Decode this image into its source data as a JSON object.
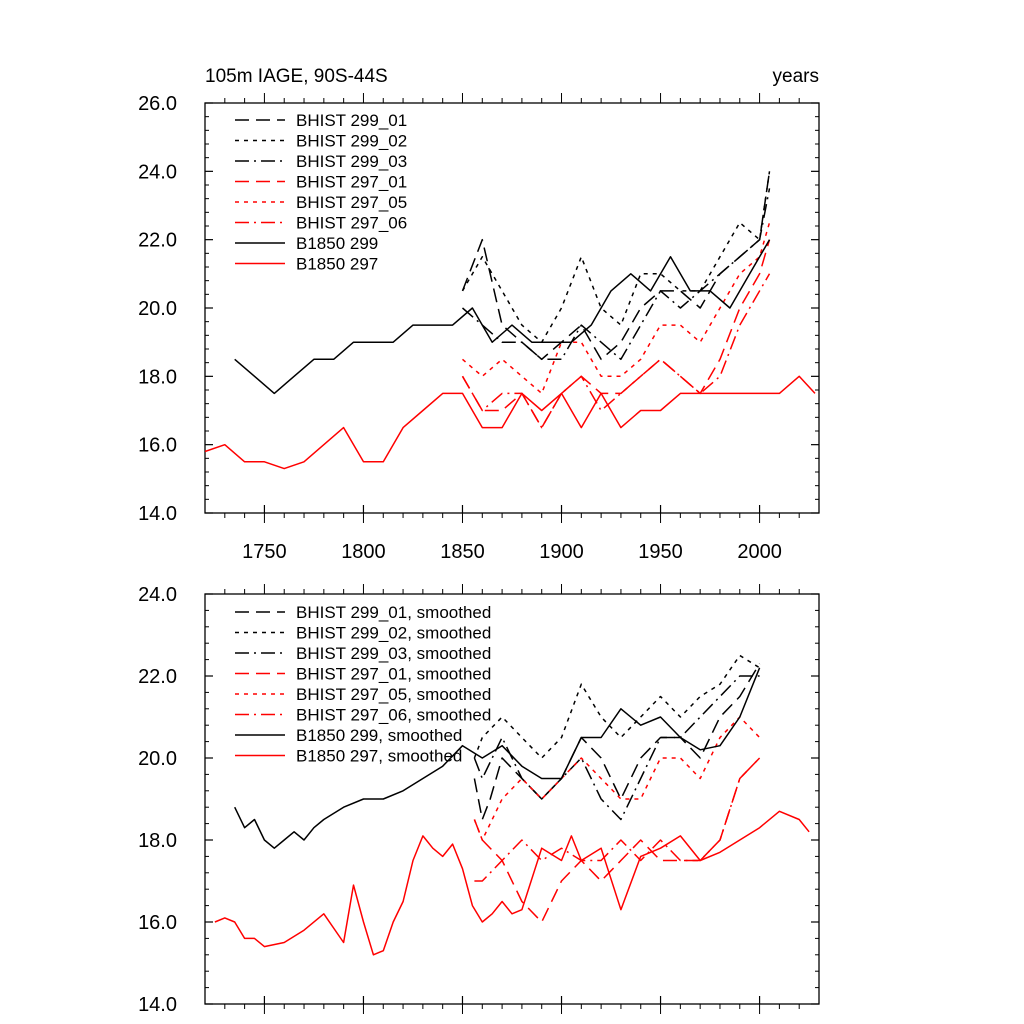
{
  "chart_data": [
    {
      "type": "line",
      "title": "105m IAGE, 90S-44S",
      "units": "years",
      "xlim": [
        1720,
        2030
      ],
      "ylim": [
        14.0,
        26.0
      ],
      "xticks": [
        1750,
        1800,
        1850,
        1900,
        1950,
        2000
      ],
      "yticks": [
        "14.0",
        "16.0",
        "18.0",
        "20.0",
        "22.0",
        "24.0",
        "26.0"
      ],
      "series": [
        {
          "name": "BHIST 299_01",
          "color": "#000000",
          "dash": "long",
          "x": [
            1850,
            1860,
            1870,
            1880,
            1890,
            1900,
            1910,
            1920,
            1930,
            1940,
            1950,
            1960,
            1970,
            1980,
            1990,
            2000,
            2005
          ],
          "y": [
            20.5,
            22.0,
            19.5,
            19.0,
            18.5,
            19.0,
            19.5,
            18.5,
            19.0,
            20.0,
            20.5,
            20.5,
            20.0,
            21.0,
            21.5,
            22.0,
            24.0
          ]
        },
        {
          "name": "BHIST 299_02",
          "color": "#000000",
          "dash": "short",
          "x": [
            1850,
            1860,
            1870,
            1880,
            1890,
            1900,
            1910,
            1920,
            1930,
            1940,
            1950,
            1960,
            1970,
            1980,
            1990,
            2000,
            2005
          ],
          "y": [
            20.5,
            21.5,
            20.5,
            19.5,
            19.0,
            20.0,
            21.5,
            20.0,
            19.5,
            21.0,
            21.0,
            20.5,
            20.5,
            21.5,
            22.5,
            22.0,
            24.0
          ]
        },
        {
          "name": "BHIST 299_03",
          "color": "#000000",
          "dash": "dashdot",
          "x": [
            1850,
            1860,
            1870,
            1880,
            1890,
            1900,
            1910,
            1920,
            1930,
            1940,
            1950,
            1960,
            1970,
            1980,
            1990,
            2000,
            2005
          ],
          "y": [
            20.0,
            19.5,
            19.0,
            19.0,
            18.5,
            18.5,
            19.5,
            19.0,
            18.5,
            19.5,
            20.5,
            20.0,
            20.5,
            21.0,
            21.5,
            22.0,
            23.5
          ]
        },
        {
          "name": "BHIST 297_01",
          "color": "#ff0000",
          "dash": "long",
          "x": [
            1850,
            1860,
            1870,
            1880,
            1890,
            1900,
            1910,
            1920,
            1930,
            1940,
            1950,
            1960,
            1970,
            1980,
            1990,
            2000,
            2005
          ],
          "y": [
            18.0,
            17.0,
            17.0,
            17.5,
            16.5,
            17.5,
            18.0,
            17.5,
            17.5,
            18.0,
            18.5,
            18.0,
            17.5,
            18.5,
            20.0,
            21.0,
            22.0
          ]
        },
        {
          "name": "BHIST 297_05",
          "color": "#ff0000",
          "dash": "short",
          "x": [
            1850,
            1860,
            1870,
            1880,
            1890,
            1900,
            1910,
            1920,
            1930,
            1940,
            1950,
            1960,
            1970,
            1980,
            1990,
            2000,
            2005
          ],
          "y": [
            18.5,
            18.0,
            18.5,
            18.0,
            17.5,
            19.0,
            19.0,
            18.0,
            18.0,
            18.5,
            19.5,
            19.5,
            19.0,
            20.0,
            21.0,
            21.5,
            22.5
          ]
        },
        {
          "name": "BHIST 297_06",
          "color": "#ff0000",
          "dash": "dashdot",
          "x": [
            1850,
            1860,
            1870,
            1880,
            1890,
            1900,
            1910,
            1920,
            1930,
            1940,
            1950,
            1960,
            1970,
            1980,
            1990,
            2000,
            2005
          ],
          "y": [
            18.0,
            17.0,
            17.5,
            17.5,
            16.5,
            17.5,
            18.0,
            17.0,
            17.5,
            18.0,
            18.5,
            18.0,
            17.5,
            18.0,
            19.5,
            20.5,
            21.0
          ]
        },
        {
          "name": "B1850 299",
          "color": "#000000",
          "dash": "solid",
          "x": [
            1735,
            1745,
            1755,
            1765,
            1775,
            1785,
            1795,
            1805,
            1815,
            1825,
            1835,
            1845,
            1855,
            1865,
            1875,
            1885,
            1895,
            1905,
            1915,
            1925,
            1935,
            1945,
            1955,
            1965,
            1975,
            1985,
            1995,
            2005
          ],
          "y": [
            18.5,
            18.0,
            17.5,
            18.0,
            18.5,
            18.5,
            19.0,
            19.0,
            19.0,
            19.5,
            19.5,
            19.5,
            20.0,
            19.0,
            19.5,
            19.0,
            19.0,
            19.0,
            19.5,
            20.5,
            21.0,
            20.5,
            21.5,
            20.5,
            20.5,
            20.0,
            21.0,
            22.0
          ]
        },
        {
          "name": "B1850 297",
          "color": "#ff0000",
          "dash": "solid",
          "x": [
            1720,
            1730,
            1740,
            1750,
            1760,
            1770,
            1780,
            1790,
            1800,
            1810,
            1820,
            1830,
            1840,
            1850,
            1860,
            1870,
            1880,
            1890,
            1900,
            1910,
            1920,
            1930,
            1940,
            1950,
            1960,
            1970,
            1980,
            1990,
            2000,
            2010,
            2020,
            2028
          ],
          "y": [
            15.8,
            16.0,
            15.5,
            15.5,
            15.3,
            15.5,
            16.0,
            16.5,
            15.5,
            15.5,
            16.5,
            17.0,
            17.5,
            17.5,
            16.5,
            16.5,
            17.5,
            17.0,
            17.5,
            16.5,
            17.5,
            16.5,
            17.0,
            17.0,
            17.5,
            17.5,
            17.5,
            17.5,
            17.5,
            17.5,
            18.0,
            17.5
          ]
        }
      ]
    },
    {
      "type": "line",
      "title": "",
      "xlim": [
        1720,
        2030
      ],
      "ylim": [
        14.0,
        24.0
      ],
      "xticks": [
        1750,
        1800,
        1850,
        1900,
        1950,
        2000
      ],
      "yticks": [
        "14.0",
        "16.0",
        "18.0",
        "20.0",
        "22.0",
        "24.0"
      ],
      "series": [
        {
          "name": "BHIST 299_01, smoothed",
          "color": "#000000",
          "dash": "long",
          "x": [
            1856,
            1860,
            1864,
            1870,
            1880,
            1890,
            1900,
            1910,
            1920,
            1930,
            1940,
            1950,
            1960,
            1970,
            1980,
            1990,
            2000
          ],
          "y": [
            19.5,
            18.5,
            19.0,
            20.0,
            19.5,
            19.0,
            19.5,
            20.5,
            20.0,
            19.0,
            20.0,
            20.5,
            20.5,
            20.0,
            21.0,
            21.5,
            22.3
          ]
        },
        {
          "name": "BHIST 299_02, smoothed",
          "color": "#000000",
          "dash": "short",
          "x": [
            1856,
            1860,
            1870,
            1880,
            1890,
            1900,
            1910,
            1920,
            1930,
            1940,
            1950,
            1960,
            1970,
            1980,
            1990,
            2000
          ],
          "y": [
            20.0,
            20.5,
            21.0,
            20.5,
            20.0,
            20.5,
            21.8,
            21.0,
            20.5,
            21.0,
            21.5,
            21.0,
            21.5,
            21.8,
            22.5,
            22.2
          ]
        },
        {
          "name": "BHIST 299_03, smoothed",
          "color": "#000000",
          "dash": "dashdot",
          "x": [
            1856,
            1860,
            1870,
            1880,
            1890,
            1900,
            1910,
            1920,
            1930,
            1940,
            1950,
            1960,
            1970,
            1980,
            1990,
            2000
          ],
          "y": [
            20.0,
            19.5,
            20.5,
            19.5,
            19.0,
            19.5,
            20.0,
            19.0,
            18.5,
            19.5,
            20.5,
            20.5,
            21.0,
            21.5,
            22.0,
            22.0
          ]
        },
        {
          "name": "BHIST 297_01, smoothed",
          "color": "#ff0000",
          "dash": "long",
          "x": [
            1856,
            1860,
            1870,
            1880,
            1890,
            1900,
            1910,
            1920,
            1930,
            1940,
            1950,
            1960,
            1970,
            1980,
            1990,
            2000
          ],
          "y": [
            18.5,
            18.0,
            17.5,
            16.5,
            16.0,
            17.0,
            17.5,
            17.0,
            17.5,
            18.0,
            17.5,
            17.5,
            17.5,
            18.0,
            19.5,
            20.0
          ]
        },
        {
          "name": "BHIST 297_05, smoothed",
          "color": "#ff0000",
          "dash": "short",
          "x": [
            1856,
            1860,
            1870,
            1880,
            1890,
            1900,
            1910,
            1920,
            1930,
            1940,
            1950,
            1960,
            1970,
            1980,
            1990,
            2000
          ],
          "y": [
            18.5,
            18.0,
            19.0,
            19.5,
            19.0,
            19.5,
            20.0,
            19.5,
            19.0,
            19.0,
            20.0,
            20.0,
            19.5,
            20.5,
            21.0,
            20.5
          ]
        },
        {
          "name": "BHIST 297_06, smoothed",
          "color": "#ff0000",
          "dash": "dashdot",
          "x": [
            1856,
            1860,
            1870,
            1880,
            1890,
            1900,
            1910,
            1920,
            1930,
            1940,
            1950,
            1960,
            1970,
            1980,
            1990,
            2000
          ],
          "y": [
            17.0,
            17.0,
            17.5,
            18.0,
            17.5,
            17.8,
            17.5,
            17.5,
            18.0,
            17.5,
            18.0,
            17.5,
            17.5,
            18.0,
            19.5,
            20.0
          ]
        },
        {
          "name": "B1850 299, smoothed",
          "color": "#000000",
          "dash": "solid",
          "x": [
            1735,
            1740,
            1745,
            1750,
            1755,
            1760,
            1765,
            1770,
            1775,
            1780,
            1790,
            1800,
            1810,
            1820,
            1830,
            1840,
            1850,
            1860,
            1870,
            1880,
            1890,
            1900,
            1910,
            1920,
            1930,
            1940,
            1950,
            1960,
            1970,
            1980,
            1990,
            2000
          ],
          "y": [
            18.8,
            18.3,
            18.5,
            18.0,
            17.8,
            18.0,
            18.2,
            18.0,
            18.3,
            18.5,
            18.8,
            19.0,
            19.0,
            19.2,
            19.5,
            19.8,
            20.3,
            20.0,
            20.3,
            19.8,
            19.5,
            19.5,
            20.5,
            20.5,
            21.2,
            20.8,
            21.0,
            20.5,
            20.2,
            20.3,
            21.0,
            22.2
          ]
        },
        {
          "name": "B1850 297, smoothed",
          "color": "#ff0000",
          "dash": "solid",
          "x": [
            1725,
            1730,
            1735,
            1740,
            1745,
            1750,
            1760,
            1770,
            1780,
            1790,
            1795,
            1800,
            1805,
            1810,
            1815,
            1820,
            1825,
            1830,
            1835,
            1840,
            1845,
            1850,
            1855,
            1860,
            1865,
            1870,
            1875,
            1880,
            1890,
            1900,
            1905,
            1910,
            1920,
            1930,
            1940,
            1950,
            1960,
            1970,
            1980,
            1990,
            2000,
            2010,
            2020,
            2025
          ],
          "y": [
            16.0,
            16.1,
            16.0,
            15.6,
            15.6,
            15.4,
            15.5,
            15.8,
            16.2,
            15.5,
            16.9,
            16.0,
            15.2,
            15.3,
            16.0,
            16.5,
            17.5,
            18.1,
            17.8,
            17.6,
            17.9,
            17.3,
            16.4,
            16.0,
            16.2,
            16.5,
            16.2,
            16.3,
            17.8,
            17.5,
            18.1,
            17.5,
            17.8,
            16.3,
            17.6,
            17.8,
            18.1,
            17.5,
            17.7,
            18.0,
            18.3,
            18.7,
            18.5,
            18.2
          ]
        }
      ]
    }
  ]
}
